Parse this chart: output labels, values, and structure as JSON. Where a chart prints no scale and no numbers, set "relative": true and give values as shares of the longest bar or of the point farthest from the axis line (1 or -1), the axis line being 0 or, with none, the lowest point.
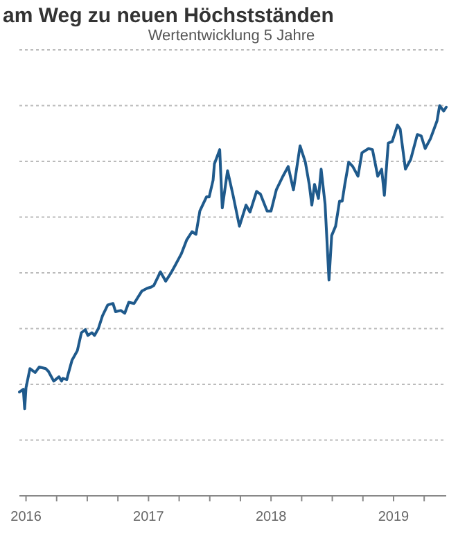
{
  "chart_data": {
    "type": "line",
    "title": "am Weg zu neuen Höchstständen",
    "subtitle": "Wertentwicklung 5 Jahre",
    "relative": true,
    "x": [
      2015.946,
      2015.978,
      2015.989,
      2016.0,
      2016.032,
      2016.075,
      2016.108,
      2016.161,
      2016.183,
      2016.226,
      2016.269,
      2016.29,
      2016.301,
      2016.333,
      2016.344,
      2016.376,
      2016.419,
      2016.452,
      2016.484,
      2016.505,
      2016.538,
      2016.559,
      2016.591,
      2016.624,
      2016.667,
      2016.71,
      2016.731,
      2016.774,
      2016.806,
      2016.839,
      2016.882,
      2016.946,
      2016.989,
      2017.022,
      2017.043,
      2017.097,
      2017.14,
      2017.183,
      2017.215,
      2017.269,
      2017.312,
      2017.355,
      2017.387,
      2017.419,
      2017.473,
      2017.495,
      2017.527,
      2017.538,
      2017.581,
      2017.602,
      2017.634,
      2017.645,
      2017.688,
      2017.742,
      2017.796,
      2017.828,
      2017.882,
      2017.914,
      2017.968,
      2018.0,
      2018.043,
      2018.097,
      2018.14,
      2018.183,
      2018.237,
      2018.28,
      2018.312,
      2018.333,
      2018.355,
      2018.387,
      2018.409,
      2018.441,
      2018.473,
      2018.495,
      2018.527,
      2018.559,
      2018.581,
      2018.602,
      2018.634,
      2018.667,
      2018.71,
      2018.742,
      2018.796,
      2018.828,
      2018.871,
      2018.903,
      2018.925,
      2018.957,
      2018.989,
      2019.032,
      2019.054,
      2019.097,
      2019.14,
      2019.194,
      2019.226,
      2019.258,
      2019.301,
      2019.355,
      2019.376,
      2019.409,
      2019.43
    ],
    "series": [
      {
        "color": "#1f5a8c",
        "values": [
          0.266,
          0.273,
          0.223,
          0.277,
          0.326,
          0.316,
          0.33,
          0.326,
          0.319,
          0.294,
          0.305,
          0.294,
          0.301,
          0.298,
          0.312,
          0.348,
          0.372,
          0.418,
          0.426,
          0.411,
          0.418,
          0.411,
          0.429,
          0.461,
          0.489,
          0.493,
          0.472,
          0.475,
          0.468,
          0.496,
          0.493,
          0.525,
          0.532,
          0.535,
          0.539,
          0.574,
          0.55,
          0.571,
          0.589,
          0.621,
          0.656,
          0.677,
          0.67,
          0.73,
          0.766,
          0.766,
          0.809,
          0.851,
          0.887,
          0.738,
          0.809,
          0.833,
          0.773,
          0.691,
          0.745,
          0.727,
          0.78,
          0.773,
          0.73,
          0.73,
          0.784,
          0.819,
          0.844,
          0.784,
          0.897,
          0.855,
          0.798,
          0.745,
          0.798,
          0.762,
          0.837,
          0.748,
          0.553,
          0.667,
          0.691,
          0.755,
          0.755,
          0.798,
          0.855,
          0.844,
          0.819,
          0.879,
          0.89,
          0.887,
          0.819,
          0.837,
          0.77,
          0.904,
          0.908,
          0.95,
          0.94,
          0.837,
          0.862,
          0.926,
          0.922,
          0.89,
          0.915,
          0.961,
          1.0,
          0.986,
          0.996
        ]
      }
    ],
    "xlim": [
      2015.946,
      2019.43
    ],
    "xticks": [
      2016,
      {
        "value": 2016.25,
        "label": null
      },
      {
        "value": 2016.5,
        "label": null
      },
      {
        "value": 2016.75,
        "label": null
      },
      2017,
      {
        "value": 2017.25,
        "label": null
      },
      {
        "value": 2017.5,
        "label": null
      },
      {
        "value": 2017.75,
        "label": null
      },
      2018,
      {
        "value": 2018.25,
        "label": null
      },
      {
        "value": 2018.5,
        "label": null
      },
      {
        "value": 2018.75,
        "label": null
      },
      2019,
      {
        "value": 2019.25,
        "label": null
      }
    ],
    "grid": "y",
    "tick_labels": "x",
    "marker": "none",
    "line_style": "solid"
  }
}
